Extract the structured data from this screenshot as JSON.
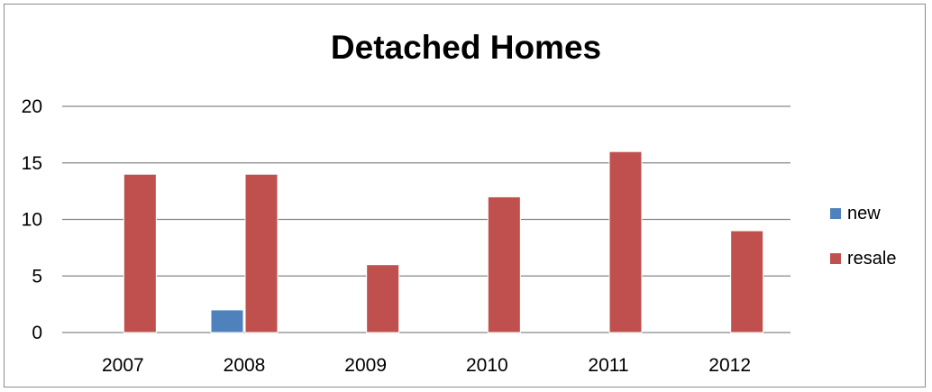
{
  "chart_data": {
    "type": "bar",
    "title": "Detached Homes",
    "categories": [
      "2007",
      "2008",
      "2009",
      "2010",
      "2011",
      "2012"
    ],
    "series": [
      {
        "name": "new",
        "values": [
          0,
          2,
          0,
          0,
          0,
          0
        ],
        "color": "#4f81bd"
      },
      {
        "name": "resale",
        "values": [
          14,
          14,
          6,
          12,
          16,
          9
        ],
        "color": "#c0504d"
      }
    ],
    "xlabel": "",
    "ylabel": "",
    "ylim": [
      0,
      20
    ],
    "yticks": [
      "0",
      "5",
      "10",
      "15",
      "20"
    ],
    "grid": true,
    "legend": "right"
  }
}
